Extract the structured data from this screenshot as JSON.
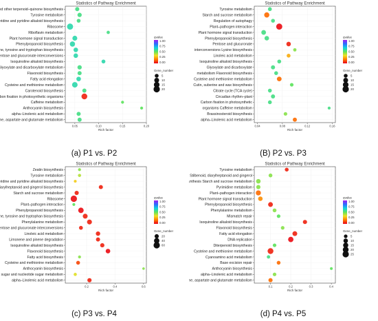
{
  "legend": {
    "qvalue_title": "qvalue",
    "gene_title": "Gene_number",
    "colors": [
      "#a020f0",
      "#2b6cff",
      "#10d0e0",
      "#5de35d",
      "#f0e020",
      "#ff7a00",
      "#e8001a"
    ]
  },
  "chart_data": [
    {
      "type": "scatter",
      "caption": "(a) P1 vs. P2",
      "title": "Statistics of Pathway Enrichment",
      "xlabel": "Rich factor",
      "xlim": [
        0.03,
        0.2
      ],
      "xticks": [
        0.05,
        0.1,
        0.15,
        0.2
      ],
      "xtick_labels": [
        "0.05",
        "0.10",
        "0.15",
        "0.20"
      ],
      "qvalue_ticks": [
        "1.00",
        "0.75",
        "0.50",
        "0.25",
        "0.00"
      ],
      "gene_ticks": [
        5,
        10,
        15,
        20
      ],
      "gene_max": 20,
      "categories": [
        "Ubiquinone and other terpenoid–quinone biosynthesis",
        "Tyrosine metabolism",
        "Tropane, piperidine and pyridine alkaloid biosynthesis",
        "Ribosome",
        "Riboflavin metabolism",
        "Plant hormone signal transduction",
        "Phenylpropanoid biosynthesis",
        "Phenylalanine, tyrosine and tryptophan biosynthesis",
        "Pentose and glucuronate interconversions",
        "Isoquinoline alkaloid biosynthesis",
        "Glyoxylate and dicarboxylate metabolism",
        "Flavonoid biosynthesis",
        "Fatty acid elongation",
        "Cysteine and methionine metabolism",
        "Carotenoid biosynthesis",
        "Carbon fixation in photosynthetic organisms",
        "Caffeine metabolism",
        "Anthocyanin biosynthesis",
        "alpha–Linolenic acid metabolism",
        "Alanine, aspartate and glutamate metabolism"
      ],
      "x": [
        0.055,
        0.06,
        0.058,
        0.04,
        0.12,
        0.05,
        0.045,
        0.052,
        0.052,
        0.11,
        0.06,
        0.06,
        0.058,
        0.05,
        0.07,
        0.07,
        0.15,
        0.19,
        0.058,
        0.06
      ],
      "qvalue": [
        0.55,
        0.55,
        0.55,
        0.6,
        0.55,
        0.6,
        0.6,
        0.6,
        0.6,
        0.6,
        0.55,
        0.55,
        0.6,
        0.6,
        0.55,
        0.05,
        0.5,
        0.5,
        0.55,
        0.55
      ],
      "gene_number": [
        6,
        7,
        5,
        18,
        3,
        10,
        12,
        8,
        8,
        5,
        7,
        6,
        8,
        14,
        6,
        16,
        2,
        2,
        6,
        6
      ]
    },
    {
      "type": "scatter",
      "caption": "(B) P2  vs. P3",
      "title": "Statistics of Pathway Enrichment",
      "xlabel": "Rich factor",
      "xlim": [
        0.035,
        0.165
      ],
      "xticks": [
        0.04,
        0.08,
        0.12,
        0.16
      ],
      "xtick_labels": [
        "0.04",
        "0.08",
        "0.12",
        "0.16"
      ],
      "qvalue_ticks": [
        "1.00",
        "0.75",
        "0.50",
        "0.25",
        "0.00"
      ],
      "gene_ticks": [
        5,
        10,
        15,
        20
      ],
      "gene_max": 20,
      "categories": [
        "Tyrosine metabolism",
        "Starch and sucrose metabolism",
        "Regulation of autophagy",
        "Plant–pathogen interaction",
        "Plant hormone signal transduction",
        "Phenylpropanoid biosynthesis",
        "Pentose and glucuronate",
        "interconversions Lysine biosynthesis",
        "Linoleic acid metabolism",
        "Isoquinoline alkaloid biosynthesis",
        "Glyoxylate and dicarboxylate",
        "metabolism Flavonoid biosynthesis",
        "Cysteine and methionine metabolism",
        "Cutin, suberine and wax biosynthesis",
        "Citrate cycle (TCA cycle)",
        "Circadian rhythm–plant",
        "Carbon fixation in photosynthetic",
        "organisms Caffeine metabolism",
        "Brassinosteroid biosynthesis",
        "alpha–Linolenic acid metabolism"
      ],
      "x": [
        0.06,
        0.055,
        0.065,
        0.075,
        0.05,
        0.055,
        0.09,
        0.1,
        0.09,
        0.075,
        0.065,
        0.07,
        0.075,
        0.095,
        0.06,
        0.065,
        0.06,
        0.155,
        0.085,
        0.1
      ],
      "qvalue": [
        0.55,
        0.15,
        0.55,
        0.02,
        0.55,
        0.55,
        0.05,
        0.45,
        0.25,
        0.55,
        0.55,
        0.55,
        0.15,
        0.5,
        0.55,
        0.55,
        0.55,
        0.55,
        0.45,
        0.15
      ],
      "gene_number": [
        5,
        12,
        5,
        18,
        9,
        8,
        8,
        3,
        5,
        5,
        6,
        5,
        9,
        4,
        5,
        6,
        5,
        2,
        4,
        6
      ]
    },
    {
      "type": "scatter",
      "caption": "(c) P3 vs. P4",
      "title": "Statistics of Pathway Enrichment",
      "xlabel": "Rich factor",
      "xlim": [
        0.05,
        0.62
      ],
      "xticks": [
        0.2,
        0.4,
        0.6
      ],
      "xtick_labels": [
        "0.2",
        "0.4",
        "0.6"
      ],
      "qvalue_ticks": [
        "1.00",
        "0.75",
        "0.50",
        "0.25",
        "0.00"
      ],
      "gene_ticks": [
        20,
        40,
        60
      ],
      "gene_max": 60,
      "categories": [
        "Zeatin biosynthesis",
        "Tyrosine metabolism",
        "Tropane, piperidine and pyridine alkaloid biosynthesis",
        "Stilbenoid, diarylheptanoid and gingerol biosynthesis",
        "Starch and sucrose metabolism",
        "Ribosome",
        "Plant–pathogen interaction",
        "Phenylpropanoid biosynthesis",
        "Phenylalanine, tyrosine and tryptophan biosynthesis",
        "Phenylalanine metabolism",
        "Pentose and glucuronate interconversions",
        "Linoleic acid metabolism",
        "Limonene and pinene degradation",
        "Isoquinoline alkaloid biosynthesis",
        "Flavonoid biosynthesis",
        "Fatty acid biosynthesis",
        "Cysteine and methionine metabolism",
        "Anthocyanin biosynthesis",
        "Amino sugar and nucleotide sugar metabolism",
        "alpha–Linolenic acid metabolism"
      ],
      "x": [
        0.15,
        0.15,
        0.12,
        0.3,
        0.13,
        0.11,
        0.11,
        0.16,
        0.19,
        0.22,
        0.16,
        0.28,
        0.28,
        0.31,
        0.35,
        0.15,
        0.14,
        0.6,
        0.12,
        0.22
      ],
      "qvalue": [
        0.45,
        0.4,
        0.3,
        0.05,
        0.05,
        0.02,
        0.5,
        0.02,
        0.05,
        0.05,
        0.05,
        0.05,
        0.05,
        0.05,
        0.02,
        0.45,
        0.1,
        0.45,
        0.35,
        0.05
      ],
      "gene_number": [
        6,
        8,
        5,
        18,
        20,
        60,
        5,
        40,
        30,
        30,
        15,
        22,
        18,
        20,
        25,
        6,
        15,
        3,
        8,
        20
      ]
    },
    {
      "type": "scatter",
      "caption": "(d) P4 vs. P5",
      "title": "Statistics of Pathway Enrichment",
      "xlabel": "Rich factor",
      "xlim": [
        0.02,
        0.42
      ],
      "xticks": [
        0.1,
        0.2,
        0.3,
        0.4
      ],
      "xtick_labels": [
        "0.1",
        "0.2",
        "0.3",
        "0.4"
      ],
      "qvalue_ticks": [
        "1.00",
        "0.75",
        "0.50",
        "0.25",
        "0.00"
      ],
      "gene_ticks": [
        5,
        10,
        15,
        20,
        25
      ],
      "gene_max": 25,
      "categories": [
        "Tyrosine metabolism",
        "Stilbenoid, diarylheptanoid and gingerol",
        "biosynthesis Starch and sucrose metabolism",
        "Pyrimidine metabolism",
        "Plant–pathogen interaction",
        "Plant hormone signal transduction",
        "Phenylpropanoid biosynthesis",
        "Phenylalanine metabolism",
        "Mismatch repair",
        "Isoquinoline alkaloid biosynthesis",
        "Flavonoid biosynthesis",
        "Fatty acid elongation",
        "DNA replication",
        "Diterpenoid biosynthesis",
        "Cysteine and methionine metabolism",
        "Cyanoamino acid metabolism",
        "Base excision repair",
        "Anthocyanin biosynthesis",
        "alpha–Linolenic acid metabolism",
        "Alanine, aspartate and glutamate metabolism"
      ],
      "x": [
        0.18,
        0.1,
        0.04,
        0.04,
        0.04,
        0.05,
        0.1,
        0.12,
        0.14,
        0.27,
        0.16,
        0.22,
        0.2,
        0.12,
        0.1,
        0.09,
        0.14,
        0.4,
        0.12,
        0.1
      ],
      "qvalue": [
        0.05,
        0.45,
        0.45,
        0.45,
        0.15,
        0.2,
        0.05,
        0.45,
        0.5,
        0.05,
        0.45,
        0.05,
        0.02,
        0.5,
        0.05,
        0.55,
        0.15,
        0.5,
        0.45,
        0.15
      ],
      "gene_number": [
        6,
        6,
        10,
        8,
        14,
        10,
        12,
        6,
        5,
        8,
        5,
        12,
        16,
        5,
        20,
        4,
        6,
        2,
        5,
        8
      ]
    }
  ]
}
